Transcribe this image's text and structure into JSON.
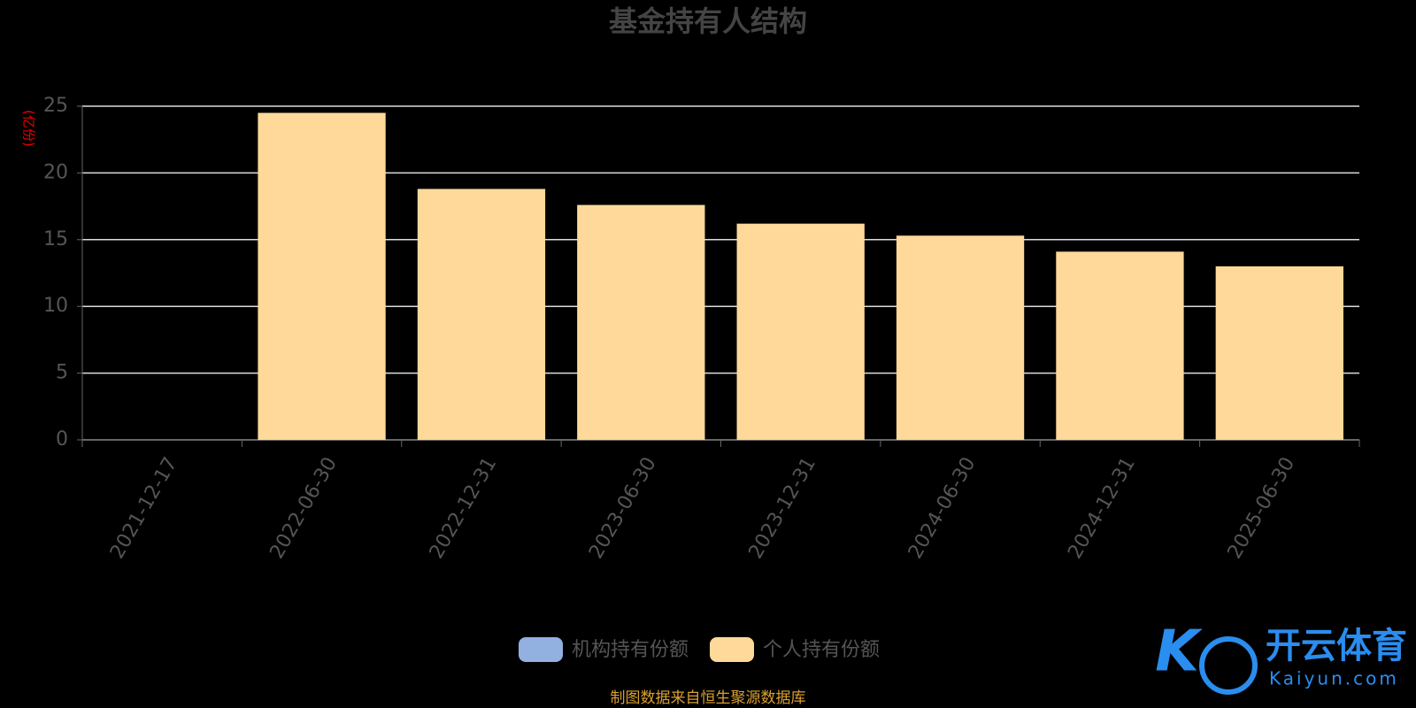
{
  "chart_data": {
    "type": "bar",
    "stacked": true,
    "title": "基金持有人结构",
    "y_axis_label": "(亿份)",
    "categories": [
      "2021-12-17",
      "2022-06-30",
      "2022-12-31",
      "2023-06-30",
      "2023-12-31",
      "2024-06-30",
      "2024-12-31",
      "2025-06-30"
    ],
    "series": [
      {
        "name": "机构持有份额",
        "color": "#92b0e0",
        "values": [
          0,
          0,
          0,
          0,
          0,
          0,
          0,
          0
        ]
      },
      {
        "name": "个人持有份额",
        "color": "#ffd99a",
        "values": [
          0,
          24.5,
          18.8,
          17.6,
          16.2,
          15.3,
          14.1,
          13.0
        ]
      }
    ],
    "ylim": [
      0,
      25
    ],
    "yticks": [
      0,
      5,
      10,
      15,
      20,
      25
    ],
    "grid": true,
    "source": "制图数据来自恒生聚源数据库"
  },
  "watermark": {
    "brand": "开云体育",
    "site": "Kaiyun.com"
  }
}
